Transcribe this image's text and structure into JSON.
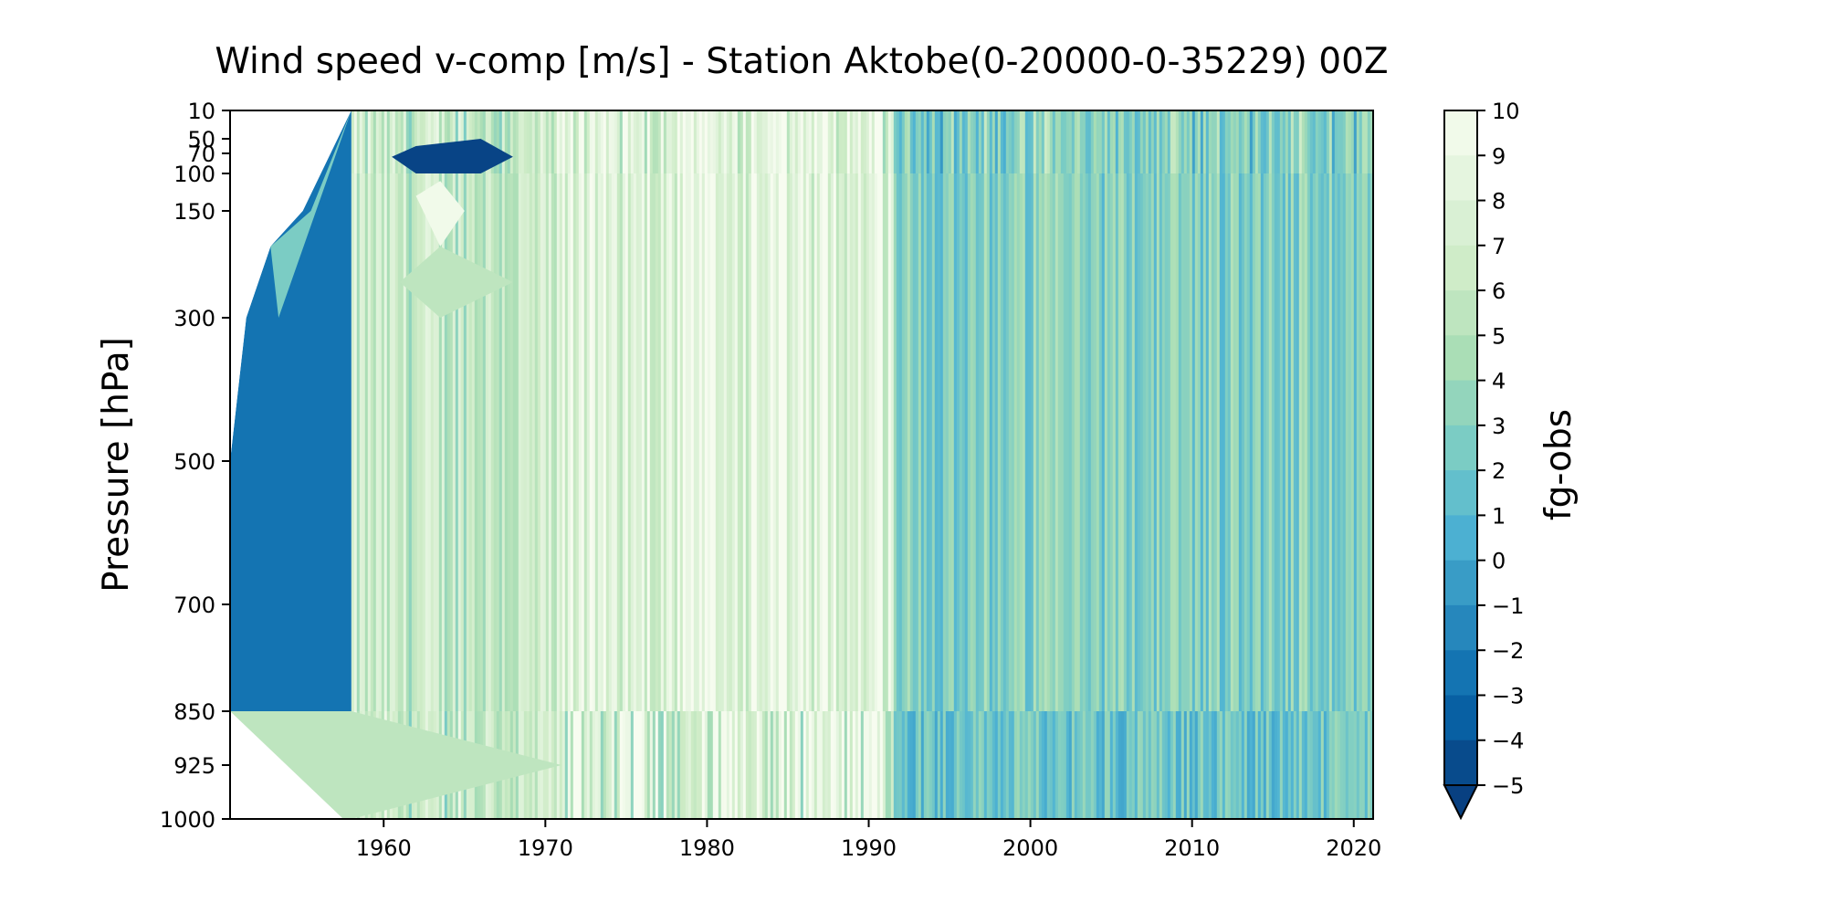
{
  "chart_data": {
    "type": "heatmap",
    "title": "Wind speed v-comp [m/s] - Station Aktobe(0-20000-0-35229) 00Z",
    "xlabel": "",
    "ylabel": "Pressure [hPa]",
    "colorbar_label": "fg-obs",
    "x_ticks": [
      "1960",
      "1970",
      "1980",
      "1990",
      "2000",
      "2010",
      "2020"
    ],
    "x_tick_values": [
      1960,
      1970,
      1980,
      1990,
      2000,
      2010,
      2020
    ],
    "xlim": [
      1950.5,
      2021.2
    ],
    "y_ticks": [
      "10",
      "50",
      "70",
      "100",
      "150",
      "300",
      "500",
      "700",
      "850",
      "925",
      "1000"
    ],
    "y_tick_values": [
      10,
      50,
      70,
      100,
      150,
      300,
      500,
      700,
      850,
      925,
      1000
    ],
    "ylim": [
      1000,
      10
    ],
    "y_scale": "sqrt-like pressure axis (inverted)",
    "colorbar_ticks": [
      "10",
      "9",
      "8",
      "7",
      "6",
      "5",
      "4",
      "3",
      "2",
      "1",
      "0",
      "−1",
      "−2",
      "−3",
      "−4",
      "−5"
    ],
    "color_range": [
      -5,
      10
    ],
    "colorbar_extend": "min",
    "colormap": "GnBu_r",
    "colormap_stops": [
      "#084081",
      "#0868ac",
      "#2b8cbe",
      "#4eb3d3",
      "#7bccc4",
      "#a8ddb5",
      "#ccebc5",
      "#e0f3db",
      "#f7fcf0"
    ],
    "periods": [
      {
        "start": 1950.5,
        "end": 1958,
        "pattern": "sparse, strongly negative (dark blue) with interpolation wedges",
        "mean": -2
      },
      {
        "start": 1958,
        "end": 1971,
        "pattern": "mixed, mostly light green/white, dark patch near 70 hPa",
        "mean": 6
      },
      {
        "start": 1971,
        "end": 1991.5,
        "pattern": "mostly light (8-10) with dark stripes near surface 850-1000 hPa",
        "mean": 8
      },
      {
        "start": 1991.5,
        "end": 2021.2,
        "pattern": "medium blue-green (1-5) vertical striping",
        "mean": 3
      }
    ]
  }
}
